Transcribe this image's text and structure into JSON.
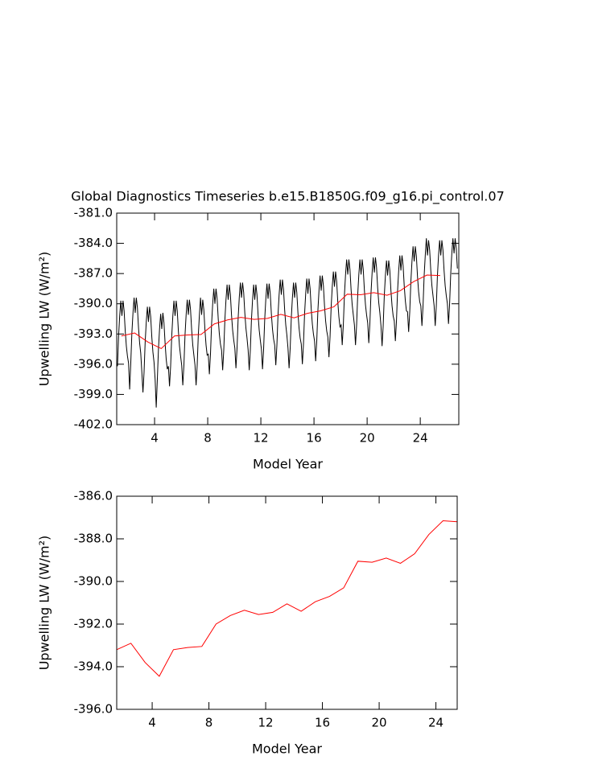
{
  "chart_data": [
    {
      "type": "line",
      "title": "Global Diagnostics Timeseries b.e15.B1850G.f09_g16.pi_control.07",
      "x_label": "Model Year",
      "y_label": "Upwelling LW (W/m²)",
      "xlim": [
        1.15,
        26.9
      ],
      "xticks": [
        4,
        8,
        12,
        16,
        20,
        24
      ],
      "ylim": [
        -402,
        -381
      ],
      "yticks": [
        {
          "value": -381,
          "label": "-381.0"
        },
        {
          "value": -384,
          "label": "-384.0"
        },
        {
          "value": -387,
          "label": "-387.0"
        },
        {
          "value": -390,
          "label": "-390.0"
        },
        {
          "value": -393,
          "label": "-393.0"
        },
        {
          "value": -396,
          "label": "-396.0"
        },
        {
          "value": -399,
          "label": "-399.0"
        },
        {
          "value": -402,
          "label": "-402.0"
        }
      ],
      "series": [
        {
          "color": "#000000",
          "x": [
            1.208,
            1.292,
            1.375,
            1.458,
            1.542,
            1.625,
            1.708,
            1.792,
            1.875,
            1.958,
            2.042,
            2.125,
            2.208,
            2.292,
            2.375,
            2.458,
            2.542,
            2.625,
            2.708,
            2.792,
            2.875,
            2.958,
            3.042,
            3.125,
            3.208,
            3.292,
            3.375,
            3.458,
            3.542,
            3.625,
            3.708,
            3.792,
            3.875,
            3.958,
            4.042,
            4.125,
            4.208,
            4.292,
            4.375,
            4.458,
            4.542,
            4.625,
            4.708,
            4.792,
            4.875,
            4.958,
            5.042,
            5.125,
            5.208,
            5.292,
            5.375,
            5.458,
            5.542,
            5.625,
            5.708,
            5.792,
            5.875,
            5.958,
            6.042,
            6.125,
            6.208,
            6.292,
            6.375,
            6.458,
            6.542,
            6.625,
            6.708,
            6.792,
            6.875,
            6.958,
            7.042,
            7.125,
            7.208,
            7.292,
            7.375,
            7.458,
            7.542,
            7.625,
            7.708,
            7.792,
            7.875,
            7.958,
            8.042,
            8.125,
            8.208,
            8.292,
            8.375,
            8.458,
            8.542,
            8.625,
            8.708,
            8.792,
            8.875,
            8.958,
            9.042,
            9.125,
            9.208,
            9.292,
            9.375,
            9.458,
            9.542,
            9.625,
            9.708,
            9.792,
            9.875,
            9.958,
            10.042,
            10.125,
            10.208,
            10.292,
            10.375,
            10.458,
            10.542,
            10.625,
            10.708,
            10.792,
            10.875,
            10.958,
            11.042,
            11.125,
            11.208,
            11.292,
            11.375,
            11.458,
            11.542,
            11.625,
            11.708,
            11.792,
            11.875,
            11.958,
            12.042,
            12.125,
            12.208,
            12.292,
            12.375,
            12.458,
            12.542,
            12.625,
            12.708,
            12.792,
            12.875,
            12.958,
            13.042,
            13.125,
            13.208,
            13.292,
            13.375,
            13.458,
            13.542,
            13.625,
            13.708,
            13.792,
            13.875,
            13.958,
            14.042,
            14.125,
            14.208,
            14.292,
            14.375,
            14.458,
            14.542,
            14.625,
            14.708,
            14.792,
            14.875,
            14.958,
            15.042,
            15.125,
            15.208,
            15.292,
            15.375,
            15.458,
            15.542,
            15.625,
            15.708,
            15.792,
            15.875,
            15.958,
            16.042,
            16.125,
            16.208,
            16.292,
            16.375,
            16.458,
            16.542,
            16.625,
            16.708,
            16.792,
            16.875,
            16.958,
            17.042,
            17.125,
            17.208,
            17.292,
            17.375,
            17.458,
            17.542,
            17.625,
            17.708,
            17.792,
            17.875,
            17.958,
            18.042,
            18.125,
            18.208,
            18.292,
            18.375,
            18.458,
            18.542,
            18.625,
            18.708,
            18.792,
            18.875,
            18.958,
            19.042,
            19.125,
            19.208,
            19.292,
            19.375,
            19.458,
            19.542,
            19.625,
            19.708,
            19.792,
            19.875,
            19.958,
            20.042,
            20.125,
            20.208,
            20.292,
            20.375,
            20.458,
            20.542,
            20.625,
            20.708,
            20.792,
            20.875,
            20.958,
            21.042,
            21.125,
            21.208,
            21.292,
            21.375,
            21.458,
            21.542,
            21.625,
            21.708,
            21.792,
            21.875,
            21.958,
            22.042,
            22.125,
            22.208,
            22.292,
            22.375,
            22.458,
            22.542,
            22.625,
            22.708,
            22.792,
            22.875,
            22.958,
            23.042,
            23.125,
            23.208,
            23.292,
            23.375,
            23.458,
            23.542,
            23.625,
            23.708,
            23.792,
            23.875,
            23.958,
            24.042,
            24.125,
            24.208,
            24.292,
            24.375,
            24.458,
            24.542,
            24.625,
            24.708,
            24.792,
            24.875,
            24.958,
            25.042,
            25.125,
            25.208,
            25.292,
            25.375,
            25.458,
            25.542,
            25.625,
            25.708,
            25.792,
            25.875,
            25.958,
            26.042,
            26.125,
            26.208,
            26.292,
            26.375,
            26.458,
            26.542,
            26.625,
            26.708,
            26.792
          ],
          "values": [
            -396.2,
            -393.2,
            -391.2,
            -389.7,
            -391.2,
            -389.7,
            -390.7,
            -392.7,
            -394.2,
            -395.2,
            -395.9,
            -398.5,
            -395.9,
            -392.9,
            -390.9,
            -389.4,
            -390.9,
            -389.4,
            -390.4,
            -392.4,
            -393.9,
            -394.9,
            -396.8,
            -398.8,
            -396.8,
            -393.8,
            -391.8,
            -390.3,
            -391.8,
            -390.3,
            -391.3,
            -393.3,
            -394.8,
            -395.8,
            -397.5,
            -400.3,
            -397.5,
            -394.5,
            -392.5,
            -391.0,
            -392.5,
            -390.9,
            -391.9,
            -393.9,
            -395.5,
            -396.5,
            -396.2,
            -398.2,
            -396.2,
            -393.2,
            -391.2,
            -389.7,
            -391.2,
            -389.7,
            -390.7,
            -392.7,
            -394.2,
            -395.2,
            -396.1,
            -398.1,
            -396.1,
            -393.1,
            -391.1,
            -389.6,
            -391.1,
            -389.6,
            -390.6,
            -392.6,
            -394.1,
            -395.1,
            -396.1,
            -398.1,
            -396.1,
            -393.1,
            -391.1,
            -389.4,
            -391.1,
            -389.6,
            -390.6,
            -392.6,
            -394.1,
            -395.1,
            -395.0,
            -397.0,
            -395.0,
            -392.0,
            -390.0,
            -388.5,
            -390.0,
            -388.5,
            -389.5,
            -391.5,
            -393.0,
            -394.0,
            -394.6,
            -396.6,
            -394.6,
            -391.6,
            -389.6,
            -388.1,
            -389.6,
            -388.1,
            -389.1,
            -391.1,
            -392.6,
            -393.6,
            -394.4,
            -396.4,
            -394.4,
            -391.4,
            -389.4,
            -387.9,
            -389.4,
            -387.9,
            -388.9,
            -390.9,
            -392.4,
            -393.4,
            -394.6,
            -396.6,
            -394.6,
            -391.6,
            -389.6,
            -388.1,
            -389.6,
            -388.1,
            -389.1,
            -391.1,
            -392.6,
            -393.6,
            -394.5,
            -396.5,
            -394.5,
            -391.5,
            -389.5,
            -388.0,
            -389.5,
            -388.0,
            -389.0,
            -391.0,
            -392.5,
            -393.5,
            -394.1,
            -396.1,
            -394.1,
            -391.1,
            -389.1,
            -387.6,
            -389.1,
            -387.6,
            -388.6,
            -390.6,
            -392.1,
            -393.1,
            -394.4,
            -396.4,
            -394.4,
            -391.4,
            -389.4,
            -387.9,
            -389.4,
            -387.9,
            -388.9,
            -390.9,
            -392.4,
            -393.4,
            -394.0,
            -396.0,
            -394.0,
            -391.0,
            -389.0,
            -387.5,
            -389.0,
            -387.5,
            -388.5,
            -390.5,
            -392.0,
            -393.0,
            -393.7,
            -395.7,
            -393.7,
            -390.7,
            -388.7,
            -387.2,
            -388.7,
            -387.2,
            -388.2,
            -390.2,
            -391.7,
            -392.7,
            -393.3,
            -395.3,
            -393.3,
            -390.3,
            -388.3,
            -386.8,
            -388.3,
            -386.8,
            -387.8,
            -389.8,
            -391.3,
            -392.3,
            -392.1,
            -394.1,
            -392.1,
            -389.1,
            -387.1,
            -385.6,
            -387.1,
            -385.6,
            -386.6,
            -388.6,
            -390.1,
            -391.1,
            -392.1,
            -394.1,
            -392.1,
            -389.1,
            -387.1,
            -385.6,
            -387.1,
            -385.6,
            -386.6,
            -388.6,
            -390.1,
            -391.1,
            -391.9,
            -393.9,
            -391.9,
            -388.9,
            -386.9,
            -385.4,
            -386.9,
            -385.4,
            -386.4,
            -388.4,
            -389.9,
            -390.9,
            -392.2,
            -394.2,
            -392.2,
            -389.2,
            -387.2,
            -385.7,
            -387.2,
            -385.7,
            -386.7,
            -388.7,
            -390.2,
            -391.2,
            -391.7,
            -393.7,
            -391.7,
            -388.7,
            -386.7,
            -385.2,
            -386.7,
            -385.2,
            -386.2,
            -388.2,
            -389.7,
            -390.7,
            -390.8,
            -392.8,
            -390.8,
            -387.8,
            -385.8,
            -384.3,
            -385.8,
            -384.3,
            -385.3,
            -387.3,
            -388.8,
            -389.8,
            -390.2,
            -392.2,
            -390.2,
            -387.2,
            -385.2,
            -383.5,
            -385.2,
            -383.7,
            -384.7,
            -386.7,
            -388.2,
            -389.2,
            -390.2,
            -392.2,
            -390.2,
            -387.2,
            -385.2,
            -383.7,
            -385.2,
            -383.7,
            -384.7,
            -386.7,
            -388.2,
            -389.2,
            -390.0,
            -392.0,
            -390.0,
            -387.0,
            -385.0,
            -383.5,
            -385.0,
            -383.5,
            -384.5,
            -386.5
          ]
        },
        {
          "color": "#ff0000",
          "x": [
            1.5,
            2.5,
            3.5,
            4.5,
            5.5,
            6.5,
            7.5,
            8.5,
            9.5,
            10.5,
            11.5,
            12.5,
            13.5,
            14.5,
            15.5,
            16.5,
            17.5,
            18.5,
            19.5,
            20.5,
            21.5,
            22.5,
            23.5,
            24.5,
            25.5
          ],
          "values": [
            -393.2,
            -392.9,
            -393.8,
            -394.45,
            -393.2,
            -393.1,
            -393.05,
            -392.0,
            -391.6,
            -391.35,
            -391.55,
            -391.45,
            -391.05,
            -391.4,
            -390.95,
            -390.7,
            -390.3,
            -389.05,
            -389.1,
            -388.9,
            -389.15,
            -388.7,
            -387.8,
            -387.15,
            -387.2
          ]
        }
      ]
    },
    {
      "type": "line",
      "x_label": "Model Year",
      "y_label": "Upwelling LW (W/m²)",
      "xlim": [
        1.5,
        25.5
      ],
      "xticks": [
        4,
        8,
        12,
        16,
        20,
        24
      ],
      "ylim": [
        -396,
        -386
      ],
      "yticks": [
        {
          "value": -386,
          "label": "-386.0"
        },
        {
          "value": -388,
          "label": "-388.0"
        },
        {
          "value": -390,
          "label": "-390.0"
        },
        {
          "value": -392,
          "label": "-392.0"
        },
        {
          "value": -394,
          "label": "-394.0"
        },
        {
          "value": -396,
          "label": "-396.0"
        }
      ],
      "series": [
        {
          "color": "#ff0000",
          "x": [
            1.5,
            2.5,
            3.5,
            4.5,
            5.5,
            6.5,
            7.5,
            8.5,
            9.5,
            10.5,
            11.5,
            12.5,
            13.5,
            14.5,
            15.5,
            16.5,
            17.5,
            18.5,
            19.5,
            20.5,
            21.5,
            22.5,
            23.5,
            24.5,
            25.5
          ],
          "values": [
            -393.2,
            -392.9,
            -393.8,
            -394.45,
            -393.2,
            -393.1,
            -393.05,
            -392.0,
            -391.6,
            -391.35,
            -391.55,
            -391.45,
            -391.05,
            -391.4,
            -390.95,
            -390.7,
            -390.3,
            -389.05,
            -389.1,
            -388.9,
            -389.15,
            -388.7,
            -387.8,
            -387.15,
            -387.2
          ]
        }
      ]
    }
  ]
}
